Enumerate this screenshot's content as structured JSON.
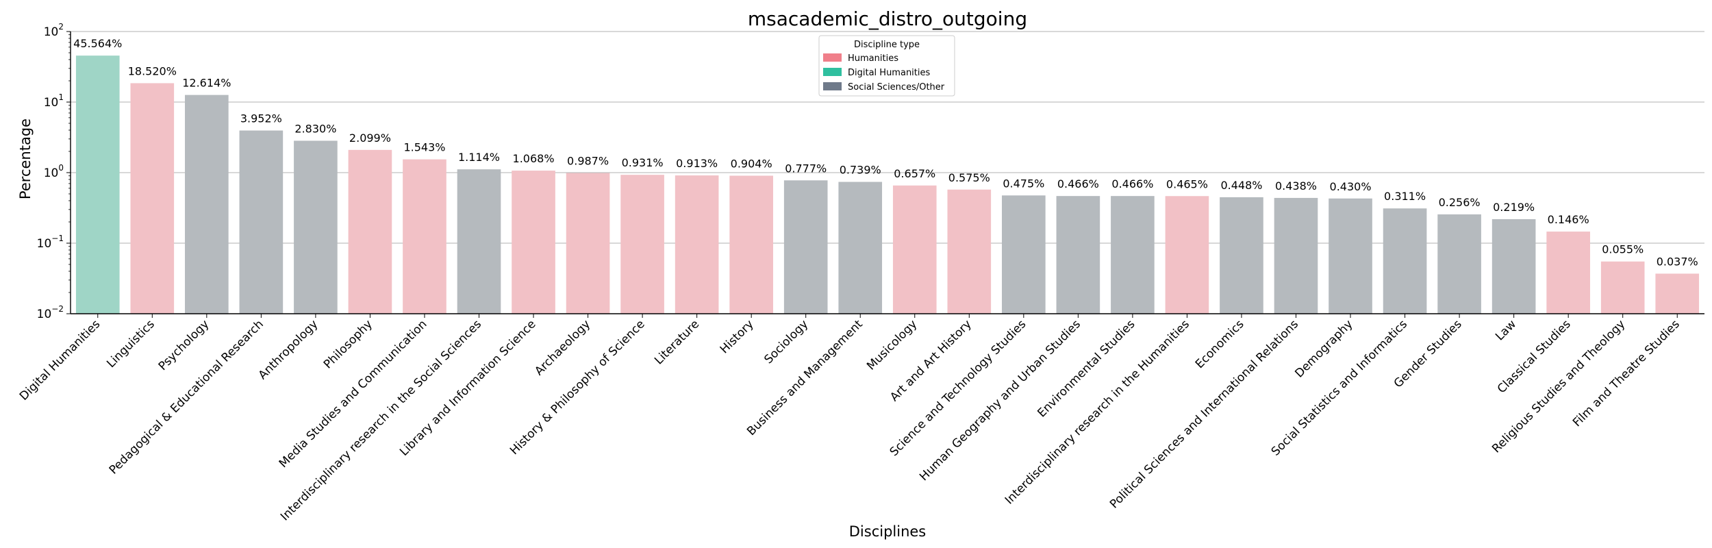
{
  "chart_data": {
    "type": "bar",
    "title": "msacademic_distro_outgoing",
    "xlabel": "Disciplines",
    "ylabel": "Percentage",
    "yscale": "log",
    "ylim": [
      0.01,
      100
    ],
    "grid": "horizontal",
    "legend": {
      "title": "Discipline type",
      "placement": "top-center",
      "entries": [
        {
          "name": "Humanities",
          "color": "#f07f8a"
        },
        {
          "name": "Digital Humanities",
          "color": "#2fbf9f"
        },
        {
          "name": "Social Sciences/Other",
          "color": "#6f7a8a"
        }
      ]
    },
    "bar_colors": {
      "Humanities": "#f2c1c6",
      "Digital Humanities": "#9fd5c6",
      "Social Sciences/Other": "#b5babe"
    },
    "y_ticks": [
      {
        "base": "10",
        "exp": "2",
        "value": 100
      },
      {
        "base": "10",
        "exp": "1",
        "value": 10
      },
      {
        "base": "10",
        "exp": "0",
        "value": 1
      },
      {
        "base": "10",
        "exp": "−1",
        "value": 0.1
      },
      {
        "base": "10",
        "exp": "−2",
        "value": 0.01
      }
    ],
    "categories": [
      "Digital Humanities",
      "Linguistics",
      "Psychology",
      "Pedagogical & Educational Research",
      "Anthropology",
      "Philosophy",
      "Media Studies and Communication",
      "Interdisciplinary research in the Social Sciences",
      "Library and Information Science",
      "Archaeology",
      "History & Philosophy of Science",
      "Literature",
      "History",
      "Sociology",
      "Business and Management",
      "Musicology",
      "Art and Art History",
      "Science and Technology Studies",
      "Human Geography and Urban Studies",
      "Environmental Studies",
      "Interdisciplinary research in the Humanities",
      "Economics",
      "Political Sciences and International Relations",
      "Demography",
      "Social Statistics and Informatics",
      "Gender Studies",
      "Law",
      "Classical Studies",
      "Religious Studies and Theology",
      "Film and Theatre Studies"
    ],
    "values": [
      45.564,
      18.52,
      12.614,
      3.952,
      2.83,
      2.099,
      1.543,
      1.114,
      1.068,
      0.987,
      0.931,
      0.913,
      0.904,
      0.777,
      0.739,
      0.657,
      0.575,
      0.475,
      0.466,
      0.466,
      0.465,
      0.448,
      0.438,
      0.43,
      0.311,
      0.256,
      0.219,
      0.146,
      0.055,
      0.037
    ],
    "data_labels": [
      "45.564%",
      "18.520%",
      "12.614%",
      "3.952%",
      "2.830%",
      "2.099%",
      "1.543%",
      "1.114%",
      "1.068%",
      "0.987%",
      "0.931%",
      "0.913%",
      "0.904%",
      "0.777%",
      "0.739%",
      "0.657%",
      "0.575%",
      "0.475%",
      "0.466%",
      "0.466%",
      "0.465%",
      "0.448%",
      "0.438%",
      "0.430%",
      "0.311%",
      "0.256%",
      "0.219%",
      "0.146%",
      "0.055%",
      "0.037%"
    ],
    "discipline_types": [
      "Digital Humanities",
      "Humanities",
      "Social Sciences/Other",
      "Social Sciences/Other",
      "Social Sciences/Other",
      "Humanities",
      "Humanities",
      "Social Sciences/Other",
      "Humanities",
      "Humanities",
      "Humanities",
      "Humanities",
      "Humanities",
      "Social Sciences/Other",
      "Social Sciences/Other",
      "Humanities",
      "Humanities",
      "Social Sciences/Other",
      "Social Sciences/Other",
      "Social Sciences/Other",
      "Humanities",
      "Social Sciences/Other",
      "Social Sciences/Other",
      "Social Sciences/Other",
      "Social Sciences/Other",
      "Social Sciences/Other",
      "Social Sciences/Other",
      "Humanities",
      "Humanities",
      "Humanities"
    ]
  }
}
